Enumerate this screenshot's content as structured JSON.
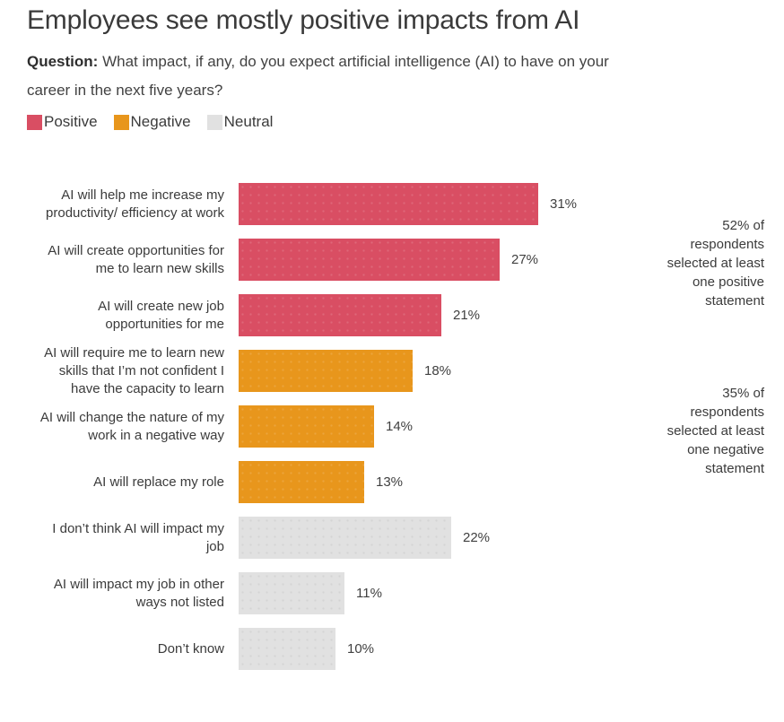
{
  "title": "Employees see mostly positive impacts from AI",
  "question": {
    "label": "Question:",
    "text": "What impact, if any, do you expect artificial intelligence (AI) to have on your\ncareer in the next five years?"
  },
  "legend": [
    {
      "id": "positive",
      "label": "Positive",
      "color": "#d94e63"
    },
    {
      "id": "negative",
      "label": "Negative",
      "color": "#e8961c"
    },
    {
      "id": "neutral",
      "label": "Neutral",
      "color": "#e1e1e1"
    }
  ],
  "chart_data": {
    "type": "bar",
    "orientation": "horizontal",
    "unit": "%",
    "xlim": [
      0,
      35
    ],
    "grid": false,
    "legend_position": "top-left",
    "categories": [
      "AI will help me increase my\nproductivity/ efficiency at work",
      "AI will create opportunities for\nme to learn new skills",
      "AI will create new job\nopportunities for me",
      "AI will require me to learn new\nskills that I’m not confident I\nhave the capacity to learn",
      "AI will change the nature of my\nwork in a negative way",
      "AI will replace my role",
      "I don’t think AI will impact my\njob",
      "AI will impact my job in other\nways not listed",
      "Don’t know"
    ],
    "values": [
      31,
      27,
      21,
      18,
      14,
      13,
      22,
      11,
      10
    ],
    "data_labels": [
      "31%",
      "27%",
      "21%",
      "18%",
      "14%",
      "13%",
      "22%",
      "11%",
      "10%"
    ],
    "groups": [
      "positive",
      "positive",
      "positive",
      "negative",
      "negative",
      "negative",
      "neutral",
      "neutral",
      "neutral"
    ]
  },
  "annotations": [
    {
      "id": "positive-note",
      "text": "52% of\nrespondents\nselected at least\none positive\nstatement"
    },
    {
      "id": "negative-note",
      "text": "35% of\nrespondents\nselected at least\none negative\nstatement"
    }
  ]
}
